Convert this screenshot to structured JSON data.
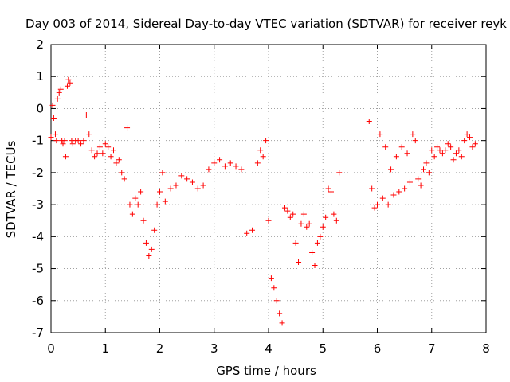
{
  "chart_data": {
    "type": "scatter",
    "title": "Day 003 of 2014, Sidereal Day-to-day VTEC variation (SDTVAR) for receiver reyk",
    "xlabel": "GPS time / hours",
    "ylabel": "SDTVAR / TECUs",
    "xlim": [
      0,
      8
    ],
    "ylim": [
      -7,
      2
    ],
    "xticks": [
      "0",
      "1",
      "2",
      "3",
      "4",
      "5",
      "6",
      "7",
      "8"
    ],
    "yticks": [
      "-7",
      "-6",
      "-5",
      "-4",
      "-3",
      "-2",
      "-1",
      "0",
      "1",
      "2"
    ],
    "grid": true,
    "marker": "+",
    "color": "#ff0000",
    "series": [
      {
        "x": [
          0.0,
          0.03,
          0.05,
          0.08,
          0.1,
          0.12,
          0.15,
          0.18,
          0.2,
          0.22,
          0.25,
          0.27,
          0.3,
          0.32,
          0.35,
          0.38,
          0.4,
          0.45,
          0.5,
          0.55,
          0.6,
          0.65,
          0.7,
          0.75,
          0.8,
          0.85,
          0.9,
          0.95,
          1.0,
          1.05,
          1.1,
          1.15,
          1.2,
          1.25,
          1.3,
          1.35,
          1.4,
          1.45,
          1.5,
          1.55,
          1.6,
          1.65,
          1.7,
          1.75,
          1.8,
          1.85,
          1.9,
          1.95,
          2.0,
          2.05,
          2.1,
          2.2,
          2.3,
          2.4,
          2.5,
          2.6,
          2.7,
          2.8,
          2.9,
          3.0,
          3.1,
          3.2,
          3.3,
          3.4,
          3.5,
          3.6,
          3.7,
          3.8,
          3.85,
          3.9,
          3.95,
          4.0,
          4.05,
          4.1,
          4.15,
          4.2,
          4.25,
          4.3,
          4.35,
          4.4,
          4.45,
          4.5,
          4.55,
          4.6,
          4.65,
          4.7,
          4.75,
          4.8,
          4.85,
          4.9,
          4.95,
          5.0,
          5.05,
          5.1,
          5.15,
          5.2,
          5.25,
          5.3
        ],
        "y": [
          -0.9,
          0.1,
          -0.3,
          -0.8,
          -1.0,
          0.3,
          0.5,
          0.6,
          -1.0,
          -1.1,
          -1.0,
          -1.5,
          0.7,
          0.9,
          0.8,
          -1.0,
          -1.1,
          -1.0,
          -1.0,
          -1.1,
          -1.0,
          -0.2,
          -0.8,
          -1.3,
          -1.5,
          -1.4,
          -1.2,
          -1.4,
          -1.1,
          -1.2,
          -1.5,
          -1.3,
          -1.7,
          -1.6,
          -2.0,
          -2.2,
          -0.6,
          -3.0,
          -3.3,
          -2.8,
          -3.0,
          -2.6,
          -3.5,
          -4.2,
          -4.6,
          -4.4,
          -3.8,
          -3.0,
          -2.6,
          -2.0,
          -2.9,
          -2.5,
          -2.4,
          -2.1,
          -2.2,
          -2.3,
          -2.5,
          -2.4,
          -1.9,
          -1.7,
          -1.6,
          -1.8,
          -1.7,
          -1.8,
          -1.9,
          -3.9,
          -3.8,
          -1.7,
          -1.3,
          -1.5,
          -1.0,
          -3.5,
          -5.3,
          -5.6,
          -6.0,
          -6.4,
          -6.7,
          -3.1,
          -3.2,
          -3.4,
          -3.3,
          -4.2,
          -4.8,
          -3.6,
          -3.3,
          -3.7,
          -3.6,
          -4.5,
          -4.9,
          -4.2,
          -4.0,
          -3.7,
          -3.4,
          -2.5,
          -2.6,
          -3.3,
          -3.5,
          -2.0
        ]
      },
      {
        "x": [
          5.85,
          5.9,
          5.95,
          6.0,
          6.05,
          6.1,
          6.15,
          6.2,
          6.25,
          6.3,
          6.35,
          6.4,
          6.45,
          6.5,
          6.55,
          6.6,
          6.65,
          6.7,
          6.75,
          6.8,
          6.85,
          6.9,
          6.95,
          7.0,
          7.05,
          7.1,
          7.15,
          7.2,
          7.25,
          7.3,
          7.35,
          7.4,
          7.45,
          7.5,
          7.55,
          7.6,
          7.65,
          7.7,
          7.75,
          7.8
        ],
        "y": [
          -0.4,
          -2.5,
          -3.1,
          -3.0,
          -0.8,
          -2.8,
          -1.2,
          -3.0,
          -1.9,
          -2.7,
          -1.5,
          -2.6,
          -1.2,
          -2.5,
          -1.4,
          -2.3,
          -0.8,
          -1.0,
          -2.2,
          -2.4,
          -1.9,
          -1.7,
          -2.0,
          -1.3,
          -1.5,
          -1.2,
          -1.3,
          -1.4,
          -1.3,
          -1.1,
          -1.2,
          -1.6,
          -1.4,
          -1.3,
          -1.5,
          -1.0,
          -0.8,
          -0.9,
          -1.2,
          -1.1
        ]
      }
    ]
  }
}
